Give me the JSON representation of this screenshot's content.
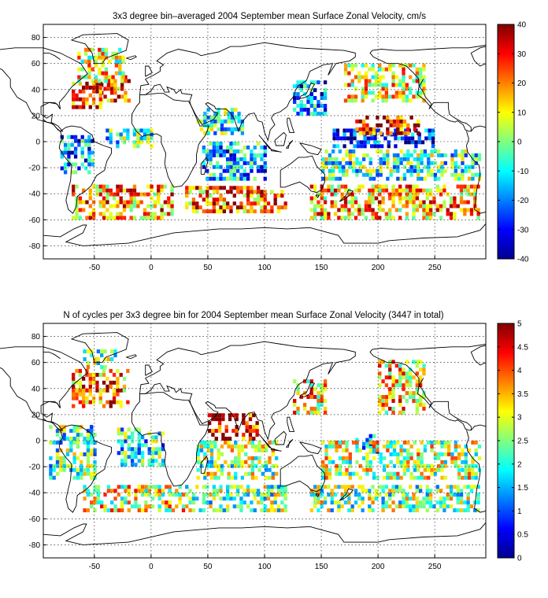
{
  "chart_data": [
    {
      "type": "heatmap",
      "title": "3x3 degree bin–averaged 2004 September mean Surface Zonal Velocity, cm/s",
      "xlabel": "",
      "ylabel": "",
      "xlim": [
        -95,
        295
      ],
      "ylim": [
        -90,
        90
      ],
      "xticks": [
        -50,
        0,
        50,
        100,
        150,
        200,
        250
      ],
      "yticks": [
        -80,
        -60,
        -40,
        -20,
        0,
        20,
        40,
        60,
        80
      ],
      "bin_size_deg": 3,
      "grid": true,
      "colormap": "jet",
      "colorbar": {
        "min": -40,
        "max": 40,
        "ticks": [
          -40,
          -30,
          -20,
          -10,
          0,
          10,
          20,
          30,
          40
        ],
        "placement": "right"
      },
      "regions": [
        {
          "x": [
            -45,
            -20
          ],
          "y": [
            30,
            50
          ],
          "value": 22
        },
        {
          "x": [
            -70,
            -45
          ],
          "y": [
            25,
            45
          ],
          "value": 28
        },
        {
          "x": [
            -65,
            -25
          ],
          "y": [
            45,
            70
          ],
          "value": 8
        },
        {
          "x": [
            -80,
            -50
          ],
          "y": [
            -25,
            5
          ],
          "value": -18
        },
        {
          "x": [
            -40,
            0
          ],
          "y": [
            -5,
            8
          ],
          "value": -6
        },
        {
          "x": [
            -70,
            20
          ],
          "y": [
            -60,
            -35
          ],
          "value": 18
        },
        {
          "x": [
            40,
            80
          ],
          "y": [
            5,
            25
          ],
          "value": -8
        },
        {
          "x": [
            45,
            100
          ],
          "y": [
            -30,
            0
          ],
          "value": -15
        },
        {
          "x": [
            30,
            120
          ],
          "y": [
            -55,
            -35
          ],
          "value": 22
        },
        {
          "x": [
            125,
            155
          ],
          "y": [
            20,
            45
          ],
          "value": -20
        },
        {
          "x": [
            160,
            250
          ],
          "y": [
            -5,
            10
          ],
          "value": -28
        },
        {
          "x": [
            180,
            235
          ],
          "y": [
            5,
            20
          ],
          "value": 30
        },
        {
          "x": [
            170,
            240
          ],
          "y": [
            30,
            60
          ],
          "value": 10
        },
        {
          "x": [
            150,
            290
          ],
          "y": [
            -30,
            -8
          ],
          "value": -5
        },
        {
          "x": [
            140,
            290
          ],
          "y": [
            -60,
            -35
          ],
          "value": 16
        }
      ]
    },
    {
      "type": "heatmap",
      "title": "N of cycles per 3x3 degree bin for 2004 September mean Surface Zonal Velocity (3447 in total)",
      "xlabel": "",
      "ylabel": "",
      "xlim": [
        -95,
        295
      ],
      "ylim": [
        -90,
        90
      ],
      "xticks": [
        -50,
        0,
        50,
        100,
        150,
        200,
        250
      ],
      "yticks": [
        -80,
        -60,
        -40,
        -20,
        0,
        20,
        40,
        60,
        80
      ],
      "bin_size_deg": 3,
      "grid": true,
      "colormap": "jet",
      "total_cycles": 3447,
      "colorbar": {
        "min": 0,
        "max": 5,
        "ticks": [
          0,
          0.5,
          1,
          1.5,
          2,
          2.5,
          3,
          3.5,
          4,
          4.5,
          5
        ],
        "placement": "right"
      },
      "regions": [
        {
          "x": [
            -70,
            -20
          ],
          "y": [
            25,
            55
          ],
          "value": 3.8
        },
        {
          "x": [
            -60,
            -30
          ],
          "y": [
            55,
            70
          ],
          "value": 2.5
        },
        {
          "x": [
            -90,
            -50
          ],
          "y": [
            -30,
            10
          ],
          "value": 2.2
        },
        {
          "x": [
            -30,
            10
          ],
          "y": [
            -20,
            10
          ],
          "value": 2.0
        },
        {
          "x": [
            -60,
            30
          ],
          "y": [
            -55,
            -35
          ],
          "value": 3.0
        },
        {
          "x": [
            50,
            75
          ],
          "y": [
            0,
            20
          ],
          "value": 4.7
        },
        {
          "x": [
            80,
            95
          ],
          "y": [
            0,
            20
          ],
          "value": 4.5
        },
        {
          "x": [
            40,
            110
          ],
          "y": [
            -30,
            0
          ],
          "value": 2.6
        },
        {
          "x": [
            30,
            120
          ],
          "y": [
            -55,
            -35
          ],
          "value": 2.4
        },
        {
          "x": [
            125,
            155
          ],
          "y": [
            20,
            45
          ],
          "value": 3.2
        },
        {
          "x": [
            180,
            200
          ],
          "y": [
            -10,
            5
          ],
          "value": 1.2
        },
        {
          "x": [
            200,
            240
          ],
          "y": [
            20,
            60
          ],
          "value": 3.4
        },
        {
          "x": [
            150,
            290
          ],
          "y": [
            -30,
            0
          ],
          "value": 2.8
        },
        {
          "x": [
            140,
            290
          ],
          "y": [
            -55,
            -35
          ],
          "value": 2.5
        }
      ]
    }
  ]
}
